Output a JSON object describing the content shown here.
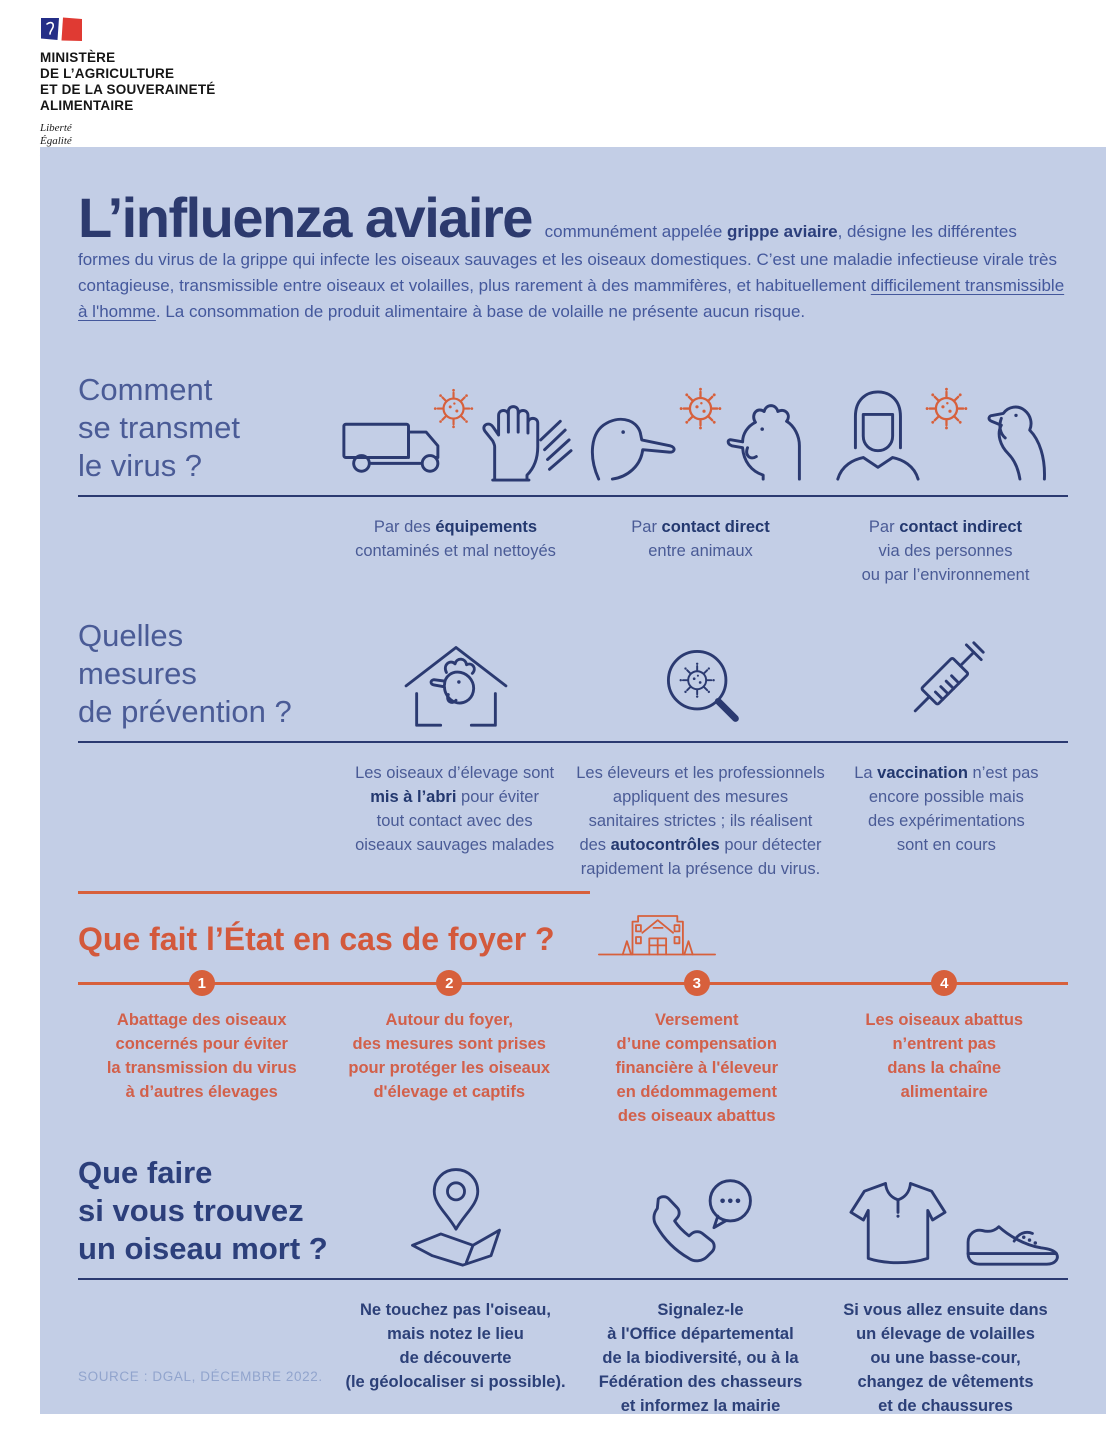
{
  "colors": {
    "panel_bg": "#c3cee6",
    "navy": "#2b3a71",
    "slate_heading": "#4a5b96",
    "text_blue": "#44589c",
    "orange": "#d7603c",
    "source_text": "#91a4cd"
  },
  "logo": {
    "ministry": "MINISTÈRE\nDE L’AGRICULTURE\nET DE LA SOUVERAINETÉ\nALIMENTAIRE",
    "motto": "Liberté\nÉgalité\nFraternité"
  },
  "intro": {
    "title": "L’influenza aviaire",
    "segments": [
      {
        "t": " communément appelée "
      },
      {
        "t": "grippe aviaire",
        "b": true
      },
      {
        "t": ", désigne les différentes formes du virus de la grippe qui infecte les oiseaux sauvages et les oiseaux domestiques. C’est une maladie infectieuse virale très contagieuse, transmissible entre oiseaux et volailles, plus rarement à des mammifères, et habituellement "
      },
      {
        "t": "difficilement transmissible à l'homme",
        "u": true
      },
      {
        "t": ". La consommation de produit alimentaire à base de volaille ne présente aucun risque."
      }
    ]
  },
  "sections": {
    "transmission": {
      "heading": "Comment\nse transmet\nle virus ?",
      "columns": [
        {
          "icon": "truck-virus-gloves-icon",
          "caption": [
            {
              "t": "Par des "
            },
            {
              "t": "équipements",
              "b": true
            },
            {
              "t": "\ncontaminés et mal nettoyés"
            }
          ]
        },
        {
          "icon": "duck-virus-chicken-icon",
          "caption": [
            {
              "t": "Par "
            },
            {
              "t": "contact direct",
              "b": true
            },
            {
              "t": "\nentre animaux"
            }
          ]
        },
        {
          "icon": "person-virus-turkey-icon",
          "caption": [
            {
              "t": "Par "
            },
            {
              "t": "contact indirect",
              "b": true
            },
            {
              "t": "\nvia des personnes\nou par l’environnement"
            }
          ]
        }
      ]
    },
    "prevention": {
      "heading": "Quelles\nmesures\nde prévention ?",
      "columns": [
        {
          "icon": "house-chicken-icon",
          "caption": [
            {
              "t": "Les oiseaux d’élevage sont\n"
            },
            {
              "t": "mis à l’abri",
              "b": true
            },
            {
              "t": " pour éviter\ntout contact avec des\noiseaux sauvages malades"
            }
          ]
        },
        {
          "icon": "magnifier-virus-icon",
          "caption": [
            {
              "t": "Les éleveurs et les professionnels\nappliquent des mesures\nsanitaires strictes ; ils réalisent\ndes "
            },
            {
              "t": "autocontrôles",
              "b": true
            },
            {
              "t": " pour détecter\nrapidement la présence du virus."
            }
          ]
        },
        {
          "icon": "syringe-icon",
          "caption": [
            {
              "t": "La "
            },
            {
              "t": "vaccination",
              "b": true
            },
            {
              "t": " n’est pas\nencore possible mais\ndes expérimentations\nsont en cours"
            }
          ]
        }
      ]
    },
    "state": {
      "heading": "Que fait l’État en cas de foyer ?",
      "icon": "government-building-icon",
      "steps": [
        {
          "num": "1",
          "text": "Abattage des oiseaux\nconcernés pour éviter\nla transmission du virus\nà d’autres élevages"
        },
        {
          "num": "2",
          "text": "Autour du foyer,\ndes mesures sont prises\npour protéger les oiseaux\nd'élevage et captifs"
        },
        {
          "num": "3",
          "text": "Versement\nd’une compensation\nfinancière à l'éleveur\nen dédommagement\ndes oiseaux abattus"
        },
        {
          "num": "4",
          "text": "Les oiseaux abattus\nn’entrent pas\ndans la chaîne\nalimentaire"
        }
      ]
    },
    "dead_bird": {
      "heading": "Que faire\nsi vous trouvez\nun oiseau mort ?",
      "columns": [
        {
          "icon": "map-location-icon",
          "caption": "Ne touchez pas l'oiseau,\nmais notez le lieu\nde découverte\n(le géolocaliser si possible)."
        },
        {
          "icon": "phone-report-icon",
          "caption": "Signalez-le\nà l'Office départemental\nde la biodiversité, ou à la\nFédération des chasseurs\net informez la mairie"
        },
        {
          "icon": "clothes-shoes-icon",
          "caption": "Si vous allez ensuite dans\nun élevage de volailles\nou une basse-cour,\nchangez de vêtements\net de chaussures"
        }
      ]
    }
  },
  "footer": {
    "source": "SOURCE : DGAL, DÉCEMBRE 2022."
  }
}
